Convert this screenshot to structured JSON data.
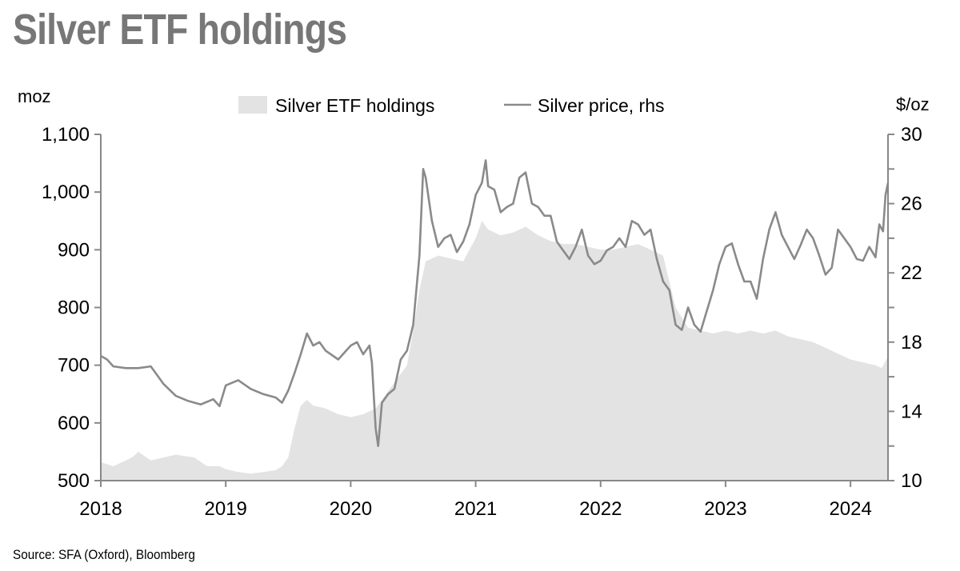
{
  "title": "Silver ETF holdings",
  "source": "Source: SFA (Oxford), Bloomberg",
  "chart_data": {
    "type": "area",
    "left_unit": "moz",
    "right_unit": "$/oz",
    "colors": {
      "area": "#e3e3e3",
      "line": "#8a8a8a",
      "axis": "#888888"
    },
    "legend": {
      "placement": "top-center",
      "entries": [
        "Silver ETF holdings",
        "Silver price, rhs"
      ]
    },
    "x_ticks": [
      "2018",
      "2019",
      "2020",
      "2021",
      "2022",
      "2023",
      "2024"
    ],
    "xlim": [
      2018.0,
      2024.3
    ],
    "ylim_left": [
      500,
      1100
    ],
    "ylim_right": [
      10,
      30
    ],
    "y_ticks_left": [
      "500",
      "600",
      "700",
      "800",
      "900",
      "1,000",
      "1,100"
    ],
    "y_ticks_right": [
      "10",
      "14",
      "18",
      "22",
      "26",
      "30"
    ],
    "grid": false,
    "series": [
      {
        "name": "Silver ETF holdings",
        "axis": "left",
        "x": [
          2018.0,
          2018.1,
          2018.25,
          2018.3,
          2018.4,
          2018.5,
          2018.6,
          2018.75,
          2018.85,
          2018.95,
          2019.0,
          2019.1,
          2019.2,
          2019.3,
          2019.4,
          2019.45,
          2019.5,
          2019.55,
          2019.6,
          2019.65,
          2019.7,
          2019.8,
          2019.9,
          2020.0,
          2020.1,
          2020.2,
          2020.25,
          2020.35,
          2020.45,
          2020.5,
          2020.55,
          2020.6,
          2020.7,
          2020.8,
          2020.9,
          2021.0,
          2021.05,
          2021.1,
          2021.2,
          2021.3,
          2021.4,
          2021.5,
          2021.6,
          2021.7,
          2021.8,
          2021.9,
          2022.0,
          2022.1,
          2022.2,
          2022.3,
          2022.4,
          2022.5,
          2022.6,
          2022.7,
          2022.8,
          2022.9,
          2023.0,
          2023.1,
          2023.2,
          2023.3,
          2023.4,
          2023.5,
          2023.6,
          2023.7,
          2023.75,
          2023.8,
          2023.9,
          2024.0,
          2024.1,
          2024.2,
          2024.25,
          2024.3
        ],
        "values": [
          532,
          525,
          540,
          550,
          535,
          540,
          545,
          540,
          525,
          525,
          520,
          515,
          512,
          515,
          518,
          525,
          540,
          590,
          630,
          640,
          630,
          625,
          615,
          610,
          615,
          625,
          640,
          670,
          700,
          760,
          830,
          880,
          890,
          885,
          880,
          920,
          950,
          935,
          925,
          930,
          940,
          925,
          915,
          910,
          910,
          905,
          900,
          900,
          905,
          910,
          900,
          890,
          800,
          765,
          760,
          755,
          760,
          755,
          760,
          755,
          760,
          750,
          745,
          740,
          735,
          730,
          720,
          710,
          705,
          700,
          695,
          715
        ]
      },
      {
        "name": "Silver price, rhs",
        "axis": "right",
        "x": [
          2018.0,
          2018.05,
          2018.1,
          2018.2,
          2018.3,
          2018.4,
          2018.45,
          2018.5,
          2018.6,
          2018.7,
          2018.8,
          2018.9,
          2018.95,
          2019.0,
          2019.1,
          2019.2,
          2019.3,
          2019.4,
          2019.45,
          2019.5,
          2019.55,
          2019.6,
          2019.65,
          2019.7,
          2019.75,
          2019.8,
          2019.9,
          2020.0,
          2020.05,
          2020.1,
          2020.15,
          2020.17,
          2020.2,
          2020.22,
          2020.25,
          2020.3,
          2020.35,
          2020.4,
          2020.45,
          2020.5,
          2020.55,
          2020.58,
          2020.6,
          2020.65,
          2020.7,
          2020.75,
          2020.8,
          2020.85,
          2020.9,
          2020.95,
          2021.0,
          2021.05,
          2021.08,
          2021.1,
          2021.15,
          2021.2,
          2021.25,
          2021.3,
          2021.35,
          2021.4,
          2021.45,
          2021.5,
          2021.55,
          2021.6,
          2021.65,
          2021.7,
          2021.75,
          2021.8,
          2021.85,
          2021.9,
          2021.95,
          2022.0,
          2022.05,
          2022.1,
          2022.15,
          2022.2,
          2022.25,
          2022.3,
          2022.35,
          2022.4,
          2022.45,
          2022.5,
          2022.55,
          2022.6,
          2022.65,
          2022.7,
          2022.75,
          2022.8,
          2022.85,
          2022.9,
          2022.95,
          2023.0,
          2023.05,
          2023.1,
          2023.15,
          2023.2,
          2023.25,
          2023.3,
          2023.35,
          2023.4,
          2023.45,
          2023.5,
          2023.55,
          2023.6,
          2023.65,
          2023.7,
          2023.75,
          2023.8,
          2023.85,
          2023.9,
          2023.95,
          2024.0,
          2024.05,
          2024.1,
          2024.15,
          2024.2,
          2024.23,
          2024.26,
          2024.28,
          2024.3
        ],
        "values": [
          17.2,
          17.0,
          16.6,
          16.5,
          16.5,
          16.6,
          16.1,
          15.6,
          14.9,
          14.6,
          14.4,
          14.7,
          14.3,
          15.5,
          15.8,
          15.3,
          15.0,
          14.8,
          14.5,
          15.2,
          16.2,
          17.3,
          18.5,
          17.8,
          18.0,
          17.5,
          17.0,
          17.8,
          18.0,
          17.3,
          17.8,
          16.8,
          13.0,
          12.0,
          14.5,
          15.0,
          15.3,
          17.0,
          17.5,
          19.0,
          23.0,
          28.0,
          27.5,
          25.0,
          23.5,
          24.0,
          24.2,
          23.2,
          23.8,
          24.8,
          26.5,
          27.2,
          28.5,
          27.0,
          26.8,
          25.5,
          25.8,
          26.0,
          27.5,
          27.8,
          26.0,
          25.8,
          25.3,
          25.3,
          23.8,
          23.3,
          22.8,
          23.5,
          24.5,
          23.0,
          22.5,
          22.7,
          23.3,
          23.5,
          24.0,
          23.5,
          25.0,
          24.8,
          24.2,
          24.5,
          22.8,
          21.5,
          21.0,
          19.0,
          18.7,
          20.0,
          19.0,
          18.6,
          19.8,
          21.0,
          22.5,
          23.5,
          23.7,
          22.5,
          21.5,
          21.5,
          20.5,
          22.8,
          24.5,
          25.5,
          24.2,
          23.5,
          22.8,
          23.6,
          24.5,
          24.0,
          23.0,
          21.9,
          22.3,
          24.5,
          24.0,
          23.5,
          22.8,
          22.7,
          23.5,
          22.9,
          24.8,
          24.4,
          26.5,
          27.2
        ]
      }
    ]
  }
}
